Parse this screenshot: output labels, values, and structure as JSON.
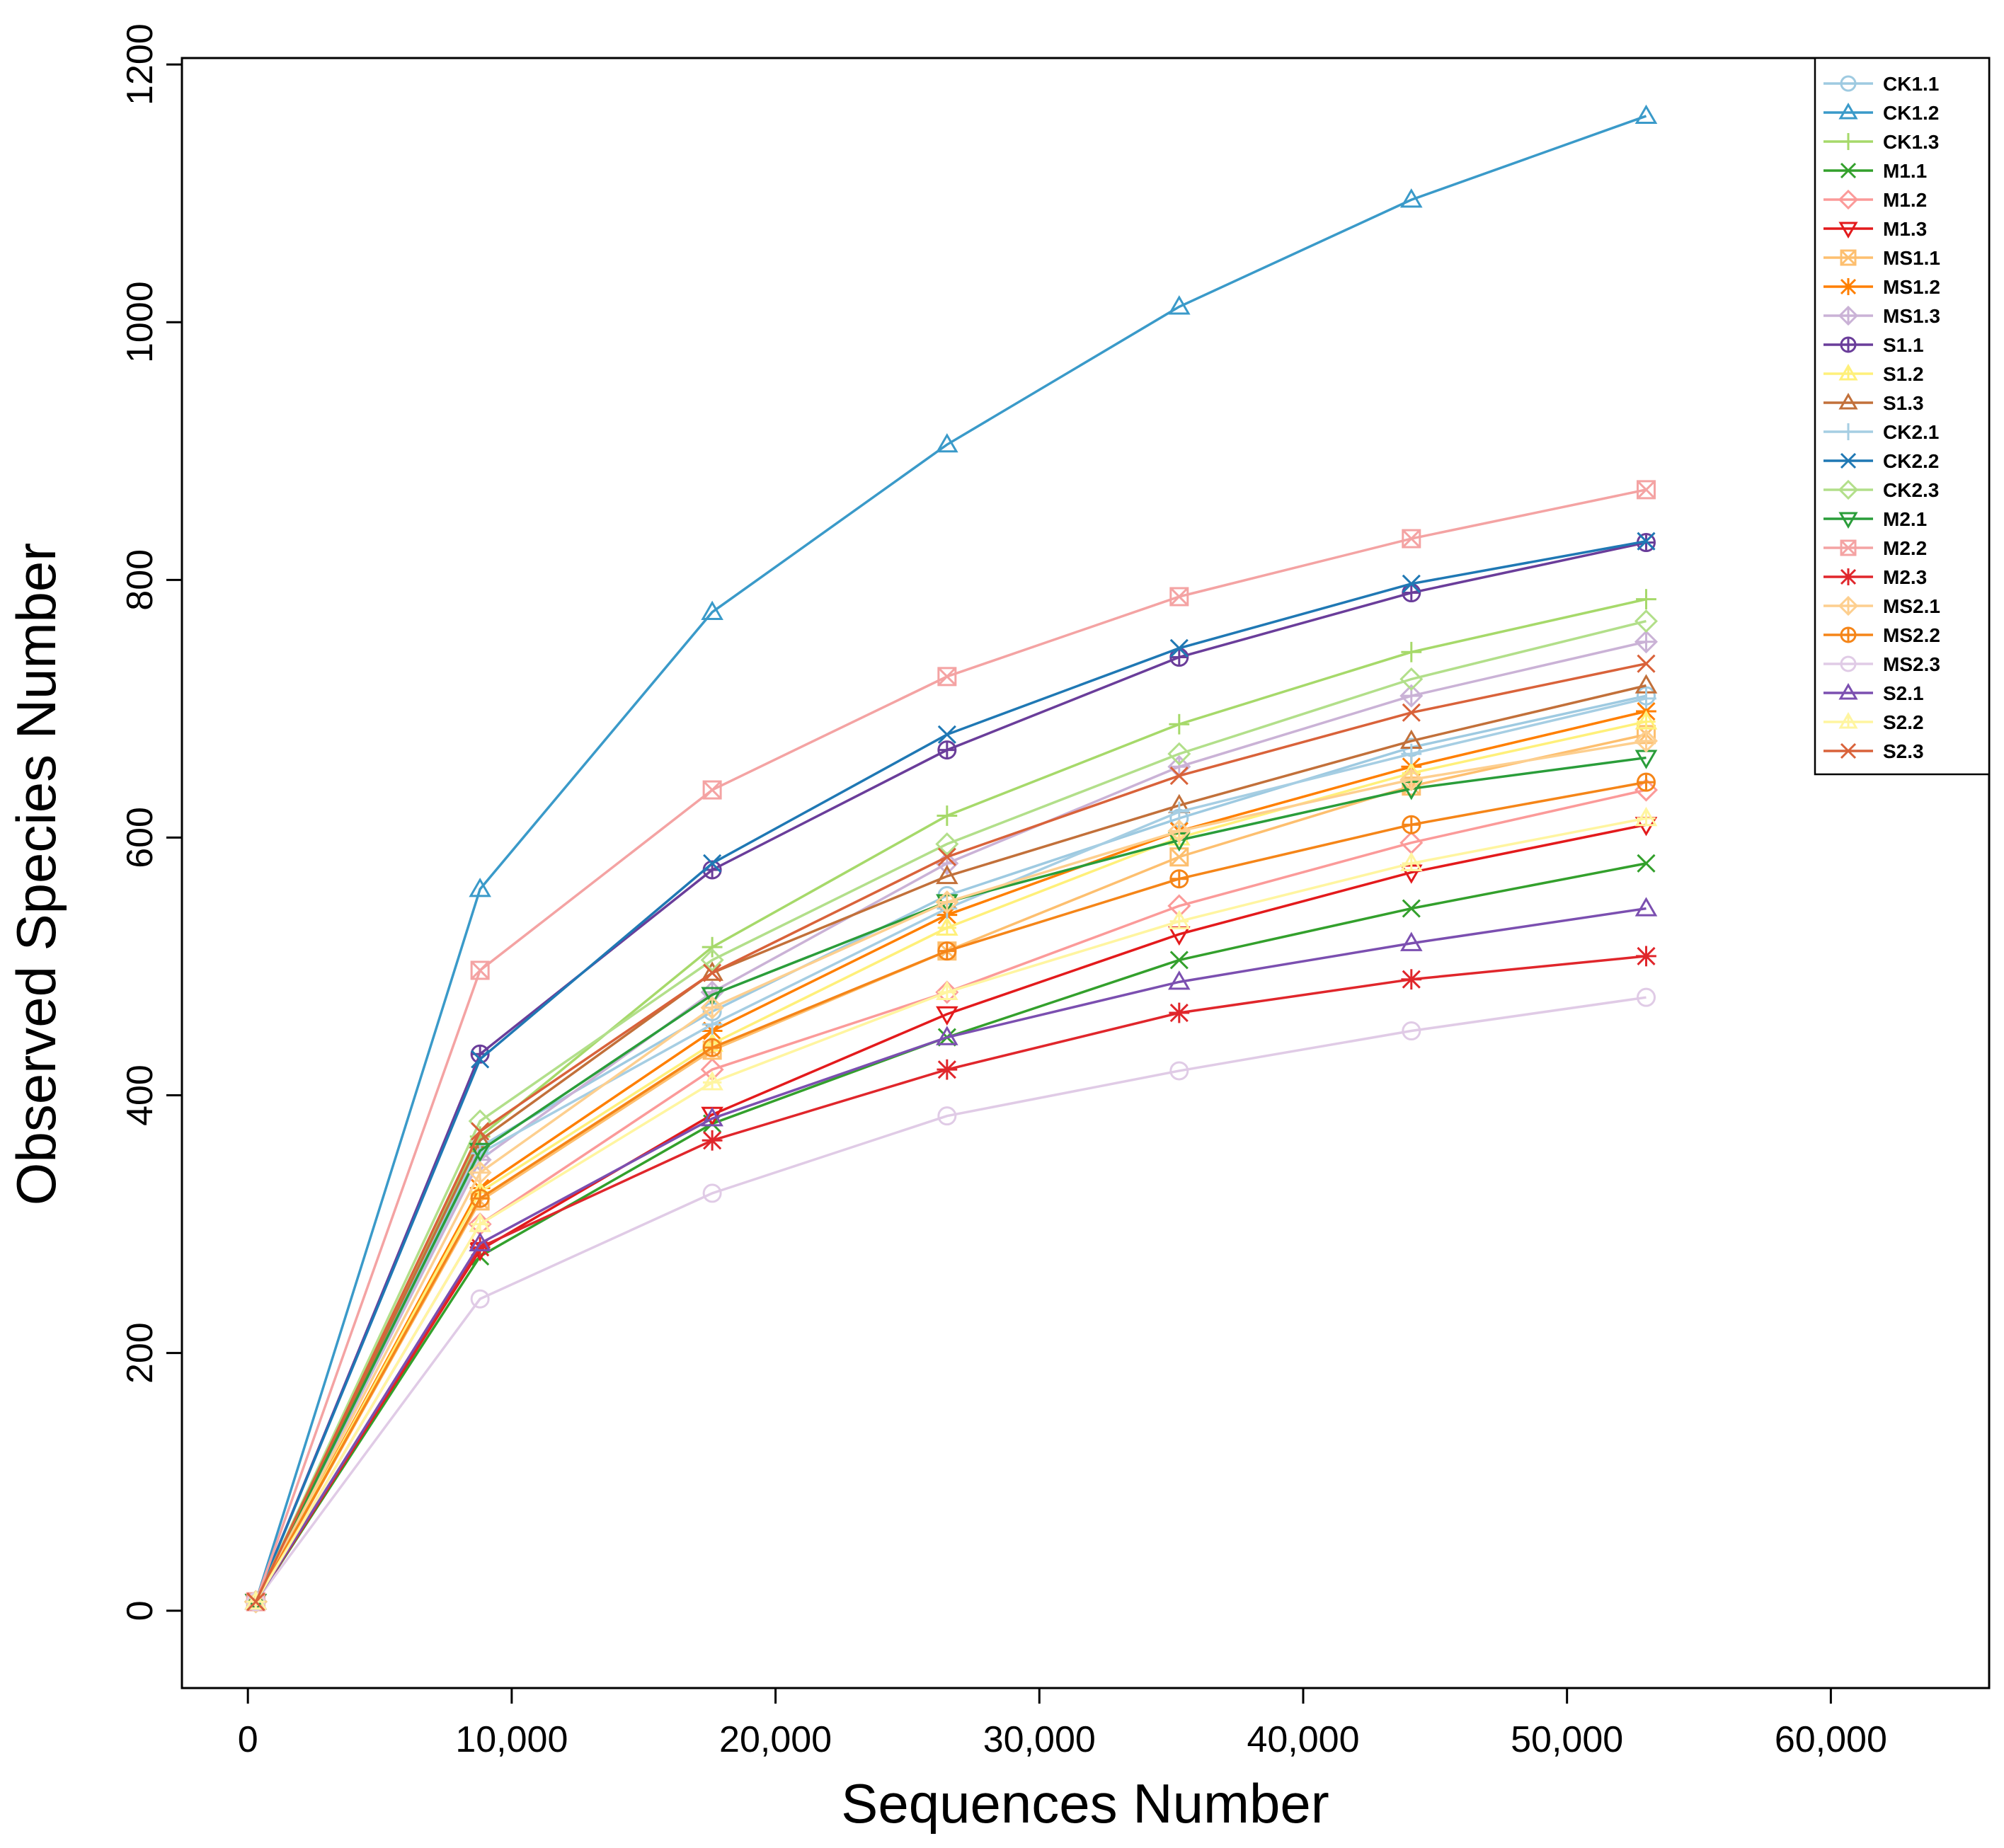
{
  "chart_data": {
    "type": "line",
    "xlabel": "Sequences Number",
    "ylabel": "Observed Species Number",
    "xlim": [
      -2500,
      66000
    ],
    "ylim": [
      -60,
      1205
    ],
    "x_ticks": [
      0,
      10000,
      20000,
      30000,
      40000,
      50000,
      60000
    ],
    "x_tick_labels": [
      "0",
      "10,000",
      "20,000",
      "30,000",
      "40,000",
      "50,000",
      "60,000"
    ],
    "y_ticks": [
      0,
      200,
      400,
      600,
      800,
      1000,
      1200
    ],
    "y_tick_labels": [
      "0",
      "200",
      "400",
      "600",
      "800",
      "1000",
      "1200"
    ],
    "grid": false,
    "legend_position": "top-right",
    "x": [
      300,
      8800,
      17600,
      26500,
      35300,
      44100,
      53000
    ],
    "series": [
      {
        "name": "CK1.1",
        "color": "#9ecae1",
        "marker": "circle",
        "values": [
          7,
          360,
          465,
          555,
          615,
          670,
          710
        ]
      },
      {
        "name": "CK1.2",
        "color": "#3a9ac9",
        "marker": "triangle",
        "values": [
          7,
          560,
          775,
          905,
          1012,
          1095,
          1160
        ]
      },
      {
        "name": "CK1.3",
        "color": "#a6d96a",
        "marker": "plus",
        "values": [
          7,
          368,
          515,
          617,
          688,
          744,
          785
        ]
      },
      {
        "name": "M1.1",
        "color": "#33a02c",
        "marker": "x",
        "values": [
          7,
          275,
          378,
          445,
          505,
          545,
          580
        ]
      },
      {
        "name": "M1.2",
        "color": "#fb9a99",
        "marker": "diamond",
        "values": [
          7,
          300,
          420,
          480,
          547,
          596,
          637
        ]
      },
      {
        "name": "M1.3",
        "color": "#e31a1c",
        "marker": "triangle-down",
        "values": [
          7,
          280,
          385,
          463,
          525,
          573,
          610
        ]
      },
      {
        "name": "MS1.1",
        "color": "#fdbf6f",
        "marker": "square-x",
        "values": [
          7,
          318,
          435,
          512,
          585,
          640,
          680
        ]
      },
      {
        "name": "MS1.2",
        "color": "#ff7f00",
        "marker": "asterisk",
        "values": [
          7,
          328,
          450,
          540,
          605,
          655,
          698
        ]
      },
      {
        "name": "MS1.3",
        "color": "#cab2d6",
        "marker": "diamond-plus",
        "values": [
          7,
          350,
          480,
          580,
          655,
          710,
          752
        ]
      },
      {
        "name": "S1.1",
        "color": "#6a3d9a",
        "marker": "circle-plus",
        "values": [
          7,
          432,
          575,
          668,
          740,
          790,
          829
        ]
      },
      {
        "name": "S1.2",
        "color": "#fff07a",
        "marker": "triangle-cross",
        "values": [
          7,
          325,
          440,
          530,
          600,
          650,
          690
        ]
      },
      {
        "name": "S1.3",
        "color": "#c2703a",
        "marker": "triangle",
        "values": [
          7,
          365,
          495,
          570,
          625,
          675,
          718
        ]
      },
      {
        "name": "CK2.1",
        "color": "#a6cee3",
        "marker": "plus",
        "values": [
          7,
          355,
          455,
          545,
          620,
          665,
          708
        ]
      },
      {
        "name": "CK2.2",
        "color": "#1f78b4",
        "marker": "x",
        "values": [
          7,
          428,
          580,
          680,
          747,
          797,
          830
        ]
      },
      {
        "name": "CK2.3",
        "color": "#b2df8a",
        "marker": "diamond",
        "values": [
          7,
          380,
          505,
          595,
          665,
          723,
          768
        ]
      },
      {
        "name": "M2.1",
        "color": "#2a9d3a",
        "marker": "triangle-down",
        "values": [
          7,
          357,
          478,
          550,
          598,
          638,
          662
        ]
      },
      {
        "name": "M2.2",
        "color": "#f4a3a3",
        "marker": "square-x",
        "values": [
          7,
          497,
          637,
          725,
          787,
          832,
          870
        ]
      },
      {
        "name": "M2.3",
        "color": "#e0262b",
        "marker": "asterisk",
        "values": [
          7,
          282,
          365,
          420,
          464,
          490,
          508
        ]
      },
      {
        "name": "MS2.1",
        "color": "#fdcf8f",
        "marker": "diamond-plus",
        "values": [
          7,
          340,
          468,
          550,
          605,
          645,
          675
        ]
      },
      {
        "name": "MS2.2",
        "color": "#f58518",
        "marker": "circle-plus",
        "values": [
          7,
          320,
          437,
          512,
          568,
          610,
          643
        ]
      },
      {
        "name": "MS2.3",
        "color": "#e0cbe6",
        "marker": "circle",
        "values": [
          7,
          242,
          324,
          384,
          419,
          450,
          476
        ]
      },
      {
        "name": "S2.1",
        "color": "#7b4fb0",
        "marker": "triangle",
        "values": [
          7,
          285,
          382,
          445,
          488,
          518,
          545
        ]
      },
      {
        "name": "S2.2",
        "color": "#fff5a0",
        "marker": "triangle-cross",
        "values": [
          7,
          300,
          410,
          480,
          535,
          580,
          615
        ]
      },
      {
        "name": "S2.3",
        "color": "#d9623a",
        "marker": "x",
        "values": [
          7,
          372,
          495,
          585,
          648,
          697,
          735
        ]
      }
    ]
  }
}
